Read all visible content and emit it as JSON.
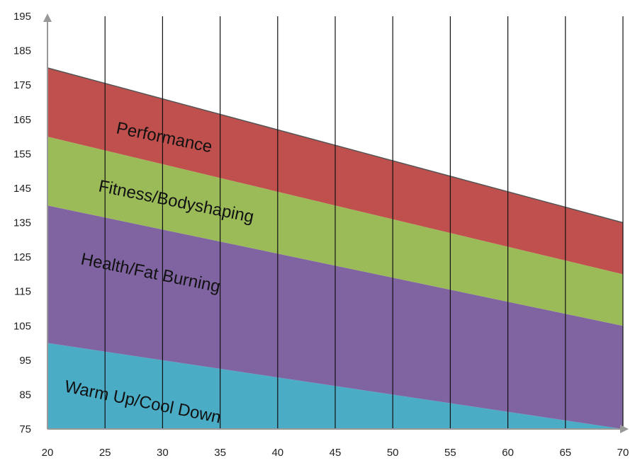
{
  "chart_data": {
    "type": "area",
    "title": "",
    "xlabel": "",
    "ylabel": "",
    "x": [
      20,
      70
    ],
    "xlim": [
      20,
      70
    ],
    "ylim": [
      75,
      195
    ],
    "x_ticks": [
      "20",
      "25",
      "30",
      "35",
      "40",
      "45",
      "50",
      "55",
      "60",
      "65",
      "70"
    ],
    "y_ticks": [
      "75",
      "85",
      "95",
      "105",
      "115",
      "125",
      "135",
      "145",
      "155",
      "165",
      "175",
      "185",
      "195"
    ],
    "vertical_grid": true,
    "horizontal_grid": false,
    "boundaries": {
      "warmup_top": [
        100,
        75
      ],
      "health_top": [
        140,
        105
      ],
      "fitness_top": [
        160,
        120
      ],
      "performance_top": [
        180,
        135
      ]
    },
    "zones": [
      {
        "label": "Warm Up/Cool Down",
        "lower": "axis",
        "upper": "warmup_top",
        "color": "#4BACC6"
      },
      {
        "label": "Health/Fat Burning",
        "lower": "warmup_top",
        "upper": "health_top",
        "color": "#8064A2"
      },
      {
        "label": "Fitness/Bodyshaping",
        "lower": "health_top",
        "upper": "fitness_top",
        "color": "#9BBB59"
      },
      {
        "label": "Performance",
        "lower": "fitness_top",
        "upper": "performance_top",
        "color": "#C0504D"
      }
    ]
  }
}
